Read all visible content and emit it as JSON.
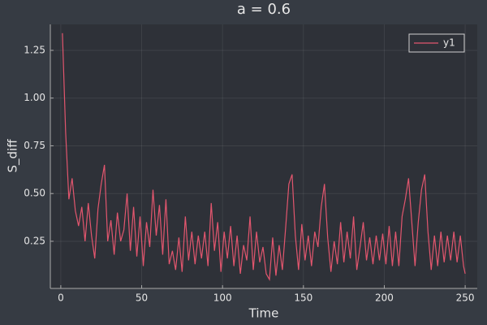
{
  "chart_data": {
    "type": "line",
    "title": "a = 0.6",
    "xlabel": "Time",
    "ylabel": "S_diff",
    "x": [
      1,
      3,
      5,
      7,
      9,
      11,
      13,
      15,
      17,
      19,
      21,
      23,
      25,
      27,
      29,
      31,
      33,
      35,
      37,
      39,
      41,
      43,
      45,
      47,
      49,
      51,
      53,
      55,
      57,
      59,
      61,
      63,
      65,
      67,
      69,
      71,
      73,
      75,
      77,
      79,
      81,
      83,
      85,
      87,
      89,
      91,
      93,
      95,
      97,
      99,
      101,
      103,
      105,
      107,
      109,
      111,
      113,
      115,
      117,
      119,
      121,
      123,
      125,
      127,
      129,
      131,
      133,
      135,
      137,
      139,
      141,
      143,
      145,
      147,
      149,
      151,
      153,
      155,
      157,
      159,
      161,
      163,
      165,
      167,
      169,
      171,
      173,
      175,
      177,
      179,
      181,
      183,
      185,
      187,
      189,
      191,
      193,
      195,
      197,
      199,
      201,
      203,
      205,
      207,
      209,
      211,
      213,
      215,
      217,
      219,
      221,
      223,
      225,
      227,
      229,
      231,
      233,
      235,
      237,
      239,
      241,
      243,
      245,
      247,
      249,
      250
    ],
    "series": [
      {
        "name": "y1",
        "color": "#e2566e",
        "values": [
          1.34,
          0.82,
          0.47,
          0.58,
          0.41,
          0.33,
          0.43,
          0.25,
          0.45,
          0.28,
          0.16,
          0.42,
          0.55,
          0.65,
          0.25,
          0.36,
          0.18,
          0.4,
          0.25,
          0.31,
          0.5,
          0.2,
          0.43,
          0.17,
          0.38,
          0.12,
          0.35,
          0.22,
          0.52,
          0.28,
          0.44,
          0.18,
          0.47,
          0.13,
          0.2,
          0.1,
          0.27,
          0.09,
          0.38,
          0.15,
          0.3,
          0.13,
          0.28,
          0.16,
          0.3,
          0.12,
          0.45,
          0.2,
          0.35,
          0.09,
          0.3,
          0.16,
          0.33,
          0.12,
          0.28,
          0.08,
          0.23,
          0.15,
          0.38,
          0.1,
          0.3,
          0.14,
          0.22,
          0.08,
          0.05,
          0.27,
          0.07,
          0.23,
          0.1,
          0.32,
          0.55,
          0.6,
          0.28,
          0.1,
          0.34,
          0.15,
          0.28,
          0.12,
          0.3,
          0.22,
          0.43,
          0.55,
          0.27,
          0.09,
          0.25,
          0.13,
          0.35,
          0.14,
          0.3,
          0.16,
          0.38,
          0.1,
          0.22,
          0.35,
          0.15,
          0.27,
          0.13,
          0.28,
          0.15,
          0.29,
          0.13,
          0.33,
          0.12,
          0.3,
          0.12,
          0.38,
          0.47,
          0.58,
          0.35,
          0.12,
          0.35,
          0.52,
          0.6,
          0.3,
          0.1,
          0.28,
          0.12,
          0.3,
          0.14,
          0.28,
          0.15,
          0.3,
          0.14,
          0.28,
          0.12,
          0.08
        ]
      }
    ],
    "xlim": [
      -6.47,
      257.47
    ],
    "xticks": [
      0,
      50,
      100,
      150,
      200,
      250
    ],
    "ylim": [
      0.003,
      1.386
    ],
    "yticks": [
      0.25,
      {
        "value": 0.5,
        "label": "0.50"
      },
      0.75,
      {
        "value": 1.0,
        "label": "1.00"
      },
      1.25
    ],
    "grid": true,
    "legend": "top-right"
  }
}
